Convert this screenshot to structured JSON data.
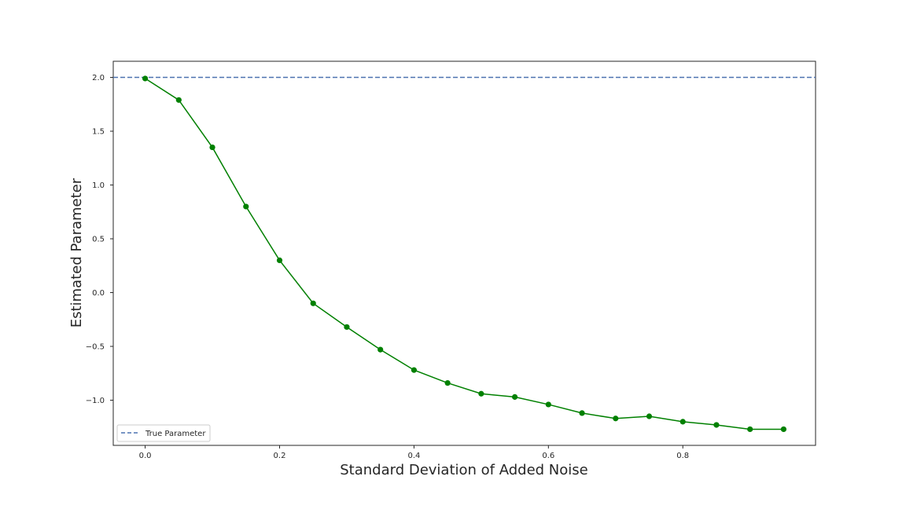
{
  "chart_data": {
    "type": "line",
    "title": "",
    "xlabel": "Standard Deviation of Added Noise",
    "ylabel": "Estimated Parameter",
    "xlim": [
      -0.0475,
      0.9975
    ],
    "ylim": [
      -1.42,
      2.15
    ],
    "xticks": [
      0.0,
      0.2,
      0.4,
      0.6,
      0.8
    ],
    "xtick_labels": [
      "0.0",
      "0.2",
      "0.4",
      "0.6",
      "0.8"
    ],
    "yticks": [
      -1.0,
      -0.5,
      0.0,
      0.5,
      1.0,
      1.5,
      2.0
    ],
    "ytick_labels": [
      "−1.0",
      "−0.5",
      "0.0",
      "0.5",
      "1.0",
      "1.5",
      "2.0"
    ],
    "grid": false,
    "legend": {
      "position": "lower-left",
      "entries": [
        "True Parameter"
      ]
    },
    "series": [
      {
        "name": "Estimated Parameter",
        "color": "#008000",
        "marker": "circle",
        "x": [
          0.0,
          0.05,
          0.1,
          0.15,
          0.2,
          0.25,
          0.3,
          0.35,
          0.4,
          0.45,
          0.5,
          0.55,
          0.6,
          0.65,
          0.7,
          0.75,
          0.8,
          0.85,
          0.9,
          0.95
        ],
        "values": [
          1.99,
          1.79,
          1.35,
          0.8,
          0.3,
          -0.1,
          -0.32,
          -0.53,
          -0.72,
          -0.84,
          -0.94,
          -0.97,
          -1.04,
          -1.12,
          -1.17,
          -1.15,
          -1.2,
          -1.23,
          -1.27,
          -1.27
        ]
      }
    ],
    "reference_lines": [
      {
        "name": "True Parameter",
        "y": 2.0,
        "color": "#4c72b0",
        "style": "dashed"
      }
    ]
  }
}
